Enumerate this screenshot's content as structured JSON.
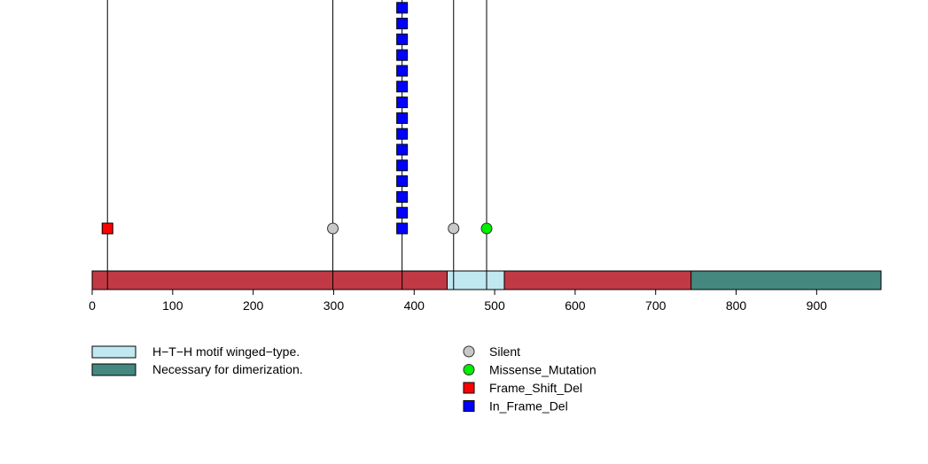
{
  "chart_data": {
    "type": "lollipop",
    "protein_length": 980,
    "xlim": [
      0,
      980
    ],
    "ticks": [
      "0",
      "100",
      "200",
      "300",
      "400",
      "500",
      "600",
      "700",
      "800",
      "900"
    ],
    "backbone_color": "#C13944",
    "domains": [
      {
        "name": "H-T-H motif winged-type.",
        "start": 441,
        "end": 512,
        "color": "#C0E8F0"
      },
      {
        "name": "Necessary for dimerization.",
        "start": 744,
        "end": 980,
        "color": "#448880"
      }
    ],
    "mutation_types": [
      {
        "name": "Silent",
        "color": "#C8C8C8",
        "shape": "circle"
      },
      {
        "name": "Missense_Mutation",
        "color": "#00EE00",
        "shape": "circle"
      },
      {
        "name": "Frame_Shift_Del",
        "color": "#FF0000",
        "shape": "square"
      },
      {
        "name": "In_Frame_Del",
        "color": "#0000FF",
        "shape": "square"
      }
    ],
    "mutations": [
      {
        "position": 19,
        "type": "Frame_Shift_Del",
        "count": 1
      },
      {
        "position": 299,
        "type": "Silent",
        "count": 1
      },
      {
        "position": 385,
        "type": "In_Frame_Del",
        "count": 15
      },
      {
        "position": 449,
        "type": "Silent",
        "count": 1
      },
      {
        "position": 490,
        "type": "Missense_Mutation",
        "count": 1
      }
    ],
    "legend_domains": [
      "H−T−H motif winged−type.",
      "Necessary for dimerization."
    ],
    "legend_mutations": [
      "Silent",
      "Missense_Mutation",
      "Frame_Shift_Del",
      "In_Frame_Del"
    ]
  }
}
